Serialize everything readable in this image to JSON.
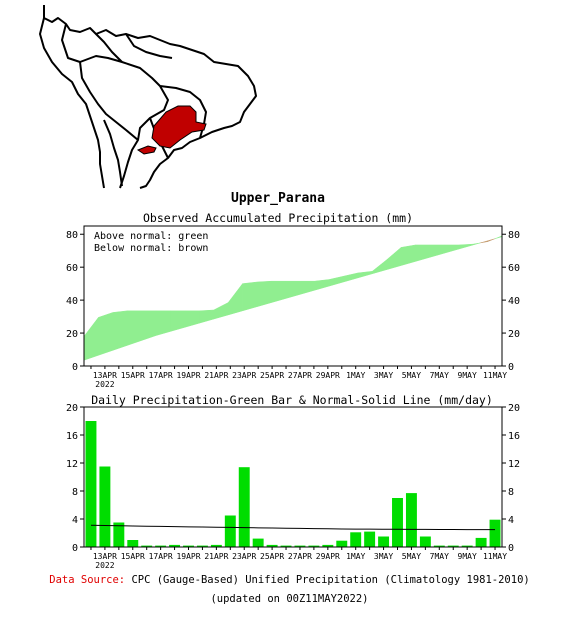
{
  "map": {
    "highlight_color": "#c00000",
    "outline_color": "#000000"
  },
  "region_title": "Upper_Parana",
  "colors": {
    "green_bar": "#00dd00",
    "green_fill": "#90ee90",
    "brown_fill": "#c49a6c",
    "normal_line": "#000000",
    "source_label": "#e00000"
  },
  "chart_data": [
    {
      "type": "area",
      "title": "Observed Accumulated Precipitation (mm)",
      "legend": [
        "Above normal: green",
        "Below normal: brown"
      ],
      "legend_placement": "top-left",
      "ylim": [
        0,
        85
      ],
      "y_ticks": [
        0,
        20,
        40,
        60,
        80
      ],
      "x_tick_labels": [
        "13APR",
        "15APR",
        "17APR",
        "19APR",
        "21APR",
        "23APR",
        "25APR",
        "27APR",
        "29APR",
        "1MAY",
        "3MAY",
        "5MAY",
        "7MAY",
        "9MAY",
        "11MAY"
      ],
      "x_first_label_year": "2022",
      "grid": false,
      "days": [
        "12APR",
        "13APR",
        "14APR",
        "15APR",
        "16APR",
        "17APR",
        "18APR",
        "19APR",
        "20APR",
        "21APR",
        "22APR",
        "23APR",
        "24APR",
        "25APR",
        "26APR",
        "27APR",
        "28APR",
        "29APR",
        "30APR",
        "1MAY",
        "2MAY",
        "3MAY",
        "4MAY",
        "5MAY",
        "6MAY",
        "7MAY",
        "8MAY",
        "9MAY",
        "10MAY",
        "11MAY"
      ],
      "series": [
        {
          "name": "Observed",
          "values": [
            18,
            29.5,
            32.5,
            33.5,
            33.5,
            33.5,
            33.5,
            33.5,
            33.5,
            34,
            38.5,
            50,
            51,
            51.5,
            51.5,
            51.5,
            51.5,
            52.5,
            54.5,
            56.5,
            57.5,
            64.5,
            72,
            73.5,
            73.5,
            73.5,
            73.5,
            74,
            75.5,
            79
          ]
        },
        {
          "name": "Normal",
          "values": [
            3.5,
            6.5,
            9.5,
            12.5,
            15.5,
            18.5,
            21,
            23.5,
            26,
            28.5,
            31,
            33.5,
            36,
            38.5,
            41,
            43.5,
            46,
            48.5,
            51,
            53.5,
            56,
            58.5,
            61,
            63.5,
            66,
            68.5,
            71,
            73.5,
            76,
            78.5
          ]
        }
      ]
    },
    {
      "type": "bar",
      "title": "Daily Precipitation-Green Bar & Normal-Solid Line (mm/day)",
      "ylim": [
        0,
        20
      ],
      "y_ticks": [
        0,
        4,
        8,
        12,
        16,
        20
      ],
      "x_tick_labels": [
        "13APR",
        "15APR",
        "17APR",
        "19APR",
        "21APR",
        "23APR",
        "25APR",
        "27APR",
        "29APR",
        "1MAY",
        "3MAY",
        "5MAY",
        "7MAY",
        "9MAY",
        "11MAY"
      ],
      "x_first_label_year": "2022",
      "grid": false,
      "days": [
        "12APR",
        "13APR",
        "14APR",
        "15APR",
        "16APR",
        "17APR",
        "18APR",
        "19APR",
        "20APR",
        "21APR",
        "22APR",
        "23APR",
        "24APR",
        "25APR",
        "26APR",
        "27APR",
        "28APR",
        "29APR",
        "30APR",
        "1MAY",
        "2MAY",
        "3MAY",
        "4MAY",
        "5MAY",
        "6MAY",
        "7MAY",
        "8MAY",
        "9MAY",
        "10MAY",
        "11MAY"
      ],
      "series": [
        {
          "name": "Daily Precipitation",
          "values": [
            18,
            11.5,
            3.5,
            1,
            0.2,
            0.2,
            0.3,
            0.2,
            0.2,
            0.3,
            4.5,
            11.4,
            1.2,
            0.3,
            0.2,
            0.2,
            0.2,
            0.3,
            0.9,
            2.1,
            2.2,
            1.5,
            7.0,
            7.7,
            1.5,
            0.2,
            0.2,
            0.2,
            1.3,
            3.9
          ]
        },
        {
          "name": "Normal",
          "values": [
            3.1,
            3.07,
            3.04,
            3.0,
            2.97,
            2.94,
            2.91,
            2.88,
            2.85,
            2.82,
            2.8,
            2.77,
            2.74,
            2.71,
            2.68,
            2.66,
            2.63,
            2.6,
            2.58,
            2.56,
            2.55,
            2.54,
            2.53,
            2.52,
            2.51,
            2.5,
            2.5,
            2.49,
            2.49,
            2.48
          ]
        }
      ]
    }
  ],
  "footer": {
    "source_label": "Data Source:",
    "source_text": "CPC (Gauge-Based) Unified Precipitation (Climatology 1981-2010)",
    "updated_text": "(updated on 00Z11MAY2022)"
  }
}
